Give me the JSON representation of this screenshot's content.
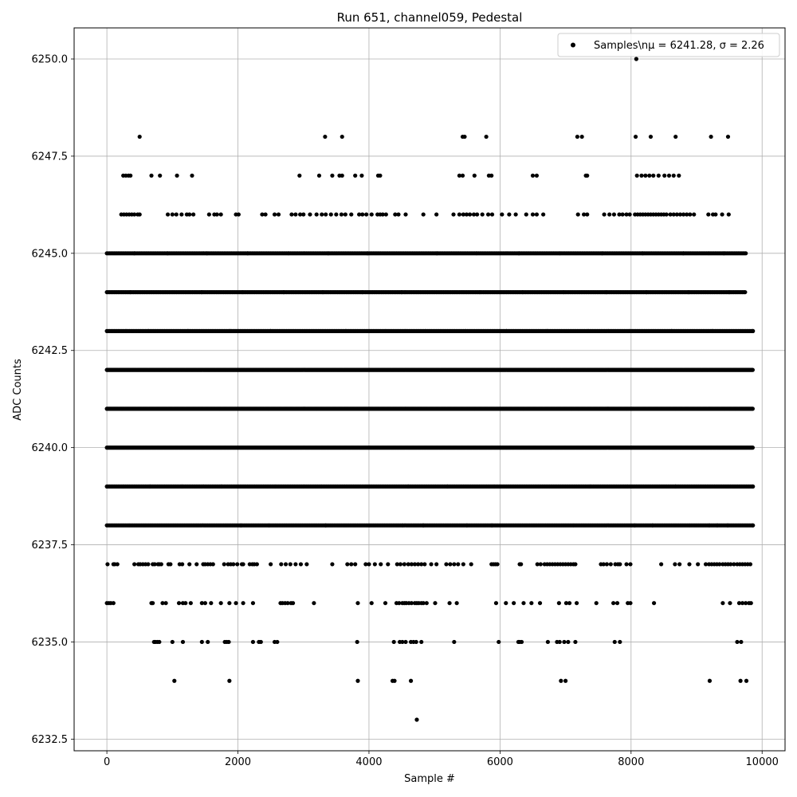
{
  "chart_data": {
    "type": "scatter",
    "title": "Run 651, channel059, Pedestal",
    "xlabel": "Sample #",
    "ylabel": "ADC Counts",
    "xlim": [
      -500,
      10350
    ],
    "ylim": [
      6232.2,
      6250.8
    ],
    "xticks": [
      0,
      2000,
      4000,
      6000,
      8000,
      10000
    ],
    "yticks": [
      6232.5,
      6235.0,
      6237.5,
      6240.0,
      6242.5,
      6245.0,
      6247.5,
      6250.0
    ],
    "grid": true,
    "legend_position": "top-right",
    "point_color": "#000000",
    "series": [
      {
        "name": "Samples\\nμ = 6241.28, σ = 2.26",
        "bands": [
          {
            "y": 6233,
            "x": [
              4730
            ]
          },
          {
            "y": 6234,
            "x": [
              1030,
              1870,
              3830,
              4360,
              4390,
              4640,
              6930,
              7000,
              9200,
              9670,
              9760
            ]
          },
          {
            "y": 6235,
            "x": [
              720,
              740,
              770,
              800,
              1000,
              1160,
              1450,
              1540,
              1800,
              1830,
              1860,
              2230,
              2320,
              2350,
              2560,
              2600,
              3820,
              4380,
              4470,
              4510,
              4560,
              4640,
              4680,
              4720,
              4800,
              5300,
              5980,
              6280,
              6300,
              6330,
              6730,
              6870,
              6910,
              6980,
              7040,
              7150,
              7750,
              7830,
              9620,
              9680
            ]
          },
          {
            "y": 6236,
            "x": [
              0,
              30,
              60,
              100,
              680,
              700,
              850,
              900,
              1100,
              1160,
              1200,
              1280,
              1450,
              1500,
              1590,
              1740,
              1870,
              1970,
              2080,
              2230,
              2650,
              2680,
              2720,
              2760,
              2810,
              2840,
              3160,
              3830,
              4040,
              4250,
              4420,
              4460,
              4510,
              4540,
              4570,
              4610,
              4650,
              4700,
              4730,
              4760,
              4800,
              4830,
              4880,
              5010,
              5230,
              5340,
              5940,
              6090,
              6210,
              6360,
              6480,
              6610,
              6900,
              7010,
              7060,
              7170,
              7470,
              7730,
              7790,
              7950,
              7990,
              8350,
              9400,
              9510,
              9650,
              9700,
              9750,
              9800,
              9830
            ]
          },
          {
            "y": 6237,
            "x": [
              10,
              100,
              120,
              160,
              420,
              480,
              510,
              550,
              590,
              630,
              700,
              730,
              780,
              800,
              830,
              940,
              970,
              1110,
              1150,
              1260,
              1370,
              1470,
              1500,
              1540,
              1580,
              1620,
              1790,
              1850,
              1890,
              1930,
              1990,
              2060,
              2080,
              2180,
              2220,
              2250,
              2290,
              2500,
              2660,
              2730,
              2800,
              2880,
              2960,
              3050,
              3440,
              3670,
              3730,
              3790,
              3950,
              4000,
              4090,
              4180,
              4290,
              4430,
              4480,
              4540,
              4600,
              4650,
              4700,
              4750,
              4800,
              4850,
              4950,
              5030,
              5180,
              5240,
              5300,
              5360,
              5440,
              5560,
              5870,
              5900,
              5930,
              5960,
              6300,
              6320,
              6570,
              6620,
              6680,
              6720,
              6760,
              6800,
              6840,
              6880,
              6920,
              6960,
              7000,
              7040,
              7080,
              7120,
              7150,
              7540,
              7580,
              7630,
              7690,
              7760,
              7800,
              7830,
              7930,
              7990,
              8460,
              8670,
              8740,
              8890,
              9020,
              9140,
              9190,
              9230,
              9270,
              9310,
              9350,
              9400,
              9440,
              9480,
              9520,
              9570,
              9620,
              9660,
              9700,
              9740,
              9780,
              9820
            ]
          },
          {
            "y": 6238,
            "x": [
              0,
              350,
              790,
              1450,
              2050,
              2480,
              3340,
              3780,
              4020,
              4520,
              4830,
              5500,
              5880,
              7130,
              7460,
              8060,
              8330,
              8900,
              9200,
              9320,
              9480,
              9700,
              9860
            ]
          },
          {
            "y": 6239,
            "x": [
              0,
              260,
              660,
              1150,
              1750,
              2580,
              3280,
              3960,
              4600,
              5200,
              5920,
              6600,
              7380,
              7950,
              8680,
              9560,
              9860
            ]
          },
          {
            "y": 6240,
            "x": [
              0,
              160,
              600,
              1200,
              1800,
              2400,
              3000,
              3600,
              4200,
              4800,
              5400,
              6000,
              6600,
              7200,
              7800,
              8400,
              9000,
              9600,
              9860
            ]
          },
          {
            "y": 6241,
            "x": [
              0,
              160,
              600,
              1200,
              1800,
              2400,
              3000,
              3600,
              4200,
              4800,
              5400,
              6000,
              6600,
              7200,
              7800,
              8400,
              9000,
              9600,
              9860
            ]
          },
          {
            "y": 6242,
            "x": [
              0,
              160,
              600,
              1200,
              1800,
              2400,
              3000,
              3600,
              4200,
              4800,
              5400,
              6000,
              6600,
              7200,
              7800,
              8400,
              9000,
              9600,
              9860
            ]
          },
          {
            "y": 6243,
            "x": [
              0,
              300,
              640,
              1240,
              1880,
              2500,
              3050,
              3650,
              4260,
              4870,
              5480,
              6100,
              6720,
              7350,
              7980,
              8620,
              9240,
              9860
            ]
          },
          {
            "y": 6244,
            "x": [
              0,
              360,
              800,
              1450,
              2080,
              2700,
              3300,
              3900,
              4500,
              5050,
              5700,
              6350,
              6980,
              7620,
              8240,
              8880,
              9500,
              9740
            ]
          },
          {
            "y": 6245,
            "x": [
              0,
              420,
              930,
              1530,
              2150,
              2780,
              3380,
              3980,
              4640,
              5040,
              5650,
              6290,
              6920,
              7560,
              8180,
              8800,
              9420,
              9750
            ]
          },
          {
            "y": 6246,
            "x": [
              220,
              260,
              300,
              340,
              380,
              420,
              470,
              500,
              930,
              1000,
              1060,
              1140,
              1220,
              1260,
              1320,
              1560,
              1640,
              1680,
              1740,
              1970,
              2010,
              2370,
              2420,
              2560,
              2620,
              2820,
              2880,
              2950,
              3000,
              3100,
              3200,
              3280,
              3340,
              3420,
              3500,
              3580,
              3640,
              3730,
              3850,
              3900,
              3960,
              4040,
              4130,
              4170,
              4210,
              4260,
              4400,
              4450,
              4560,
              4830,
              5030,
              5290,
              5380,
              5440,
              5490,
              5540,
              5600,
              5650,
              5730,
              5820,
              5880,
              6030,
              6140,
              6240,
              6400,
              6500,
              6560,
              6660,
              7190,
              7280,
              7330,
              7590,
              7670,
              7740,
              7820,
              7870,
              7930,
              7980,
              8060,
              8100,
              8140,
              8180,
              8220,
              8260,
              8300,
              8340,
              8380,
              8420,
              8460,
              8500,
              8540,
              8600,
              8650,
              8700,
              8750,
              8800,
              8850,
              8900,
              8960,
              9180,
              9250,
              9290,
              9390,
              9490
            ]
          },
          {
            "y": 6247,
            "x": [
              250,
              290,
              330,
              360,
              680,
              810,
              1070,
              1300,
              2940,
              3240,
              3440,
              3550,
              3590,
              3790,
              3890,
              4140,
              4170,
              5380,
              5430,
              5610,
              5830,
              5870,
              6500,
              6560,
              7310,
              7330,
              8090,
              8160,
              8220,
              8280,
              8340,
              8420,
              8510,
              8580,
              8650,
              8730
            ]
          },
          {
            "y": 6248,
            "x": [
              500,
              3330,
              3590,
              5430,
              5460,
              5790,
              7180,
              7250,
              8070,
              8300,
              8680,
              9220,
              9480
            ]
          },
          {
            "y": 6250,
            "x": [
              8080
            ]
          }
        ]
      }
    ]
  }
}
